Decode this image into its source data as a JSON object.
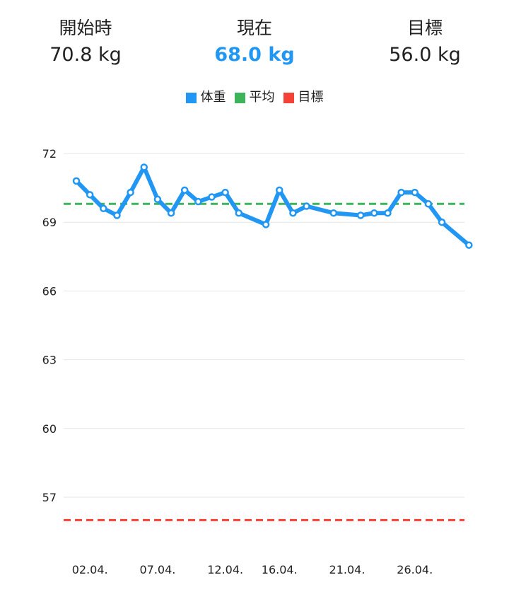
{
  "stats": {
    "start": {
      "label": "開始時",
      "value": "70.8 kg"
    },
    "current": {
      "label": "現在",
      "value": "68.0 kg"
    },
    "goal": {
      "label": "目標",
      "value": "56.0 kg"
    }
  },
  "colors": {
    "weight": "#2196F3",
    "average": "#3DB35A",
    "goal": "#F44336",
    "grid": "#e6e6e6"
  },
  "legend": [
    {
      "label": "体重",
      "color": "#2196F3"
    },
    {
      "label": "平均",
      "color": "#3DB35A"
    },
    {
      "label": "目標",
      "color": "#F44336"
    }
  ],
  "chart_data": {
    "type": "line",
    "title": "",
    "xlabel": "",
    "ylabel": "",
    "ylim": [
      55.5,
      72
    ],
    "xlim": [
      "2024-04-01",
      "2024-04-30"
    ],
    "year_note": "year not shown on chart",
    "y_ticks": [
      72,
      69,
      66,
      63,
      60,
      57
    ],
    "x_ticks": [
      "02.04.",
      "07.04.",
      "12.04.",
      "16.04.",
      "21.04.",
      "26.04."
    ],
    "x_tick_days": [
      2,
      7,
      12,
      16,
      21,
      26
    ],
    "series": [
      {
        "name": "体重",
        "day": [
          1,
          2,
          3,
          4,
          5,
          6,
          7,
          8,
          9,
          10,
          11,
          12,
          13,
          15,
          16,
          17,
          18,
          20,
          22,
          23,
          24,
          25,
          26,
          27,
          28,
          30
        ],
        "values": [
          70.8,
          70.2,
          69.6,
          69.3,
          70.3,
          71.4,
          70.0,
          69.4,
          70.4,
          69.9,
          70.1,
          70.3,
          69.4,
          68.9,
          70.4,
          69.4,
          69.7,
          69.4,
          69.3,
          69.4,
          69.4,
          70.3,
          70.3,
          69.8,
          69.0,
          68.0
        ]
      },
      {
        "name": "平均",
        "value": 69.8
      },
      {
        "name": "目標",
        "value": 56.0
      }
    ]
  }
}
